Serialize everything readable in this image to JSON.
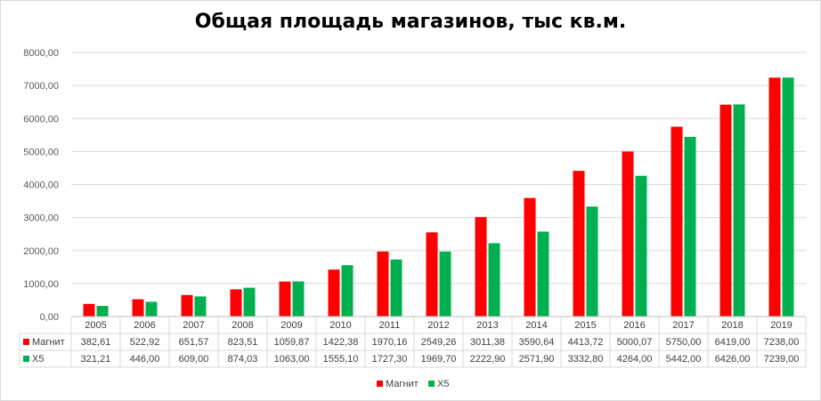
{
  "chart_data": {
    "type": "bar",
    "title": "Общая площадь магазинов, тыс кв.м.",
    "xlabel": "",
    "ylabel": "",
    "categories": [
      "2005",
      "2006",
      "2007",
      "2008",
      "2009",
      "2010",
      "2011",
      "2012",
      "2013",
      "2014",
      "2015",
      "2016",
      "2017",
      "2018",
      "2019"
    ],
    "ylim": [
      0,
      8000
    ],
    "yticks": [
      "0,00",
      "1000,00",
      "2000,00",
      "3000,00",
      "4000,00",
      "5000,00",
      "6000,00",
      "7000,00",
      "8000,00"
    ],
    "grid": true,
    "legend_position": "bottom",
    "series": [
      {
        "name": "Магнит",
        "color": "#ff0000",
        "values": [
          382.61,
          522.92,
          651.57,
          823.51,
          1059.87,
          1422.38,
          1970.16,
          2549.26,
          3011.38,
          3590.64,
          4413.72,
          5000.07,
          5750.0,
          6419.0,
          7238.0
        ],
        "labels": [
          "382,61",
          "522,92",
          "651,57",
          "823,51",
          "1059,87",
          "1422,38",
          "1970,16",
          "2549,26",
          "3011,38",
          "3590,64",
          "4413,72",
          "5000,07",
          "5750,00",
          "6419,00",
          "7238,00"
        ]
      },
      {
        "name": "X5",
        "color": "#00b050",
        "values": [
          321.21,
          446.0,
          609.0,
          874.03,
          1063.0,
          1555.1,
          1727.3,
          1969.7,
          2222.9,
          2571.9,
          3332.8,
          4264.0,
          5442.0,
          6426.0,
          7239.0
        ],
        "labels": [
          "321,21",
          "446,00",
          "609,00",
          "874,03",
          "1063,00",
          "1555,10",
          "1727,30",
          "1969,70",
          "2222,90",
          "2571,90",
          "3332,80",
          "4264,00",
          "5442,00",
          "6426,00",
          "7239,00"
        ]
      }
    ]
  }
}
